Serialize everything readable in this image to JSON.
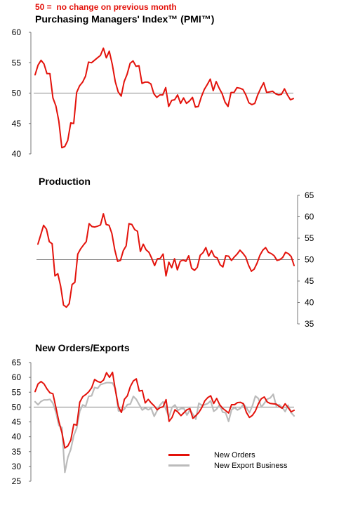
{
  "note": "50 =  no change on previous month",
  "colors": {
    "red": "#e3120b",
    "grey": "#bbbbbb",
    "axis": "#777777",
    "baseline": "#888888"
  },
  "chart_data": [
    {
      "type": "line",
      "title": "Purchasing Managers' Index™ (PMI™)",
      "ylim": [
        40,
        60
      ],
      "yticks": [
        40,
        45,
        50,
        55,
        60
      ],
      "y_axis_side": "left",
      "baseline": 50,
      "series": [
        {
          "color": "red",
          "values": [
            53.0,
            54.6,
            55.4,
            54.8,
            53.2,
            53.2,
            49.2,
            47.9,
            45.4,
            41.0,
            41.2,
            42.2,
            45.1,
            45.0,
            50.1,
            51.2,
            51.8,
            52.8,
            55.1,
            55.0,
            55.4,
            55.8,
            56.2,
            57.4,
            55.8,
            56.9,
            54.7,
            51.9,
            50.2,
            49.5,
            51.9,
            53.1,
            54.9,
            55.3,
            54.4,
            54.5,
            51.6,
            51.8,
            51.8,
            51.5,
            49.9,
            49.3,
            49.7,
            49.7,
            50.9,
            47.8,
            48.8,
            48.9,
            49.7,
            48.3,
            49.2,
            48.3,
            48.7,
            49.3,
            47.7,
            47.8,
            49.4,
            50.6,
            51.4,
            52.3,
            50.4,
            51.9,
            50.8,
            49.9,
            48.5,
            47.8,
            50.1,
            50.1,
            50.9,
            50.8,
            50.6,
            49.7,
            48.4,
            48.1,
            48.3,
            49.7,
            50.8,
            51.7,
            50.1,
            50.2,
            50.3,
            49.9,
            49.7,
            49.8,
            50.7,
            49.7,
            48.9,
            49.1
          ]
        }
      ]
    },
    {
      "type": "line",
      "title": "Production",
      "ylim": [
        35,
        65
      ],
      "yticks": [
        35,
        40,
        45,
        50,
        55,
        60,
        65
      ],
      "y_axis_side": "right",
      "baseline": 50,
      "series": [
        {
          "color": "red",
          "values": [
            53.6,
            55.8,
            58.0,
            57.1,
            54.2,
            53.7,
            46.2,
            46.7,
            43.8,
            39.4,
            38.9,
            39.7,
            44.2,
            44.7,
            51.3,
            52.5,
            53.4,
            54.2,
            58.4,
            57.7,
            57.6,
            57.8,
            58.1,
            60.7,
            58.2,
            58.0,
            56.1,
            52.3,
            49.6,
            49.8,
            52.1,
            53.2,
            58.4,
            58.2,
            57.0,
            56.6,
            51.9,
            53.6,
            52.3,
            51.7,
            50.3,
            48.6,
            50.2,
            50.3,
            51.3,
            46.2,
            49.4,
            48.1,
            50.2,
            47.6,
            49.6,
            49.9,
            49.6,
            50.9,
            48.0,
            47.5,
            48.2,
            51.0,
            51.6,
            52.8,
            50.8,
            52.1,
            50.7,
            50.4,
            48.8,
            48.3,
            50.9,
            50.8,
            49.8,
            50.6,
            51.3,
            52.2,
            51.5,
            50.6,
            48.7,
            47.3,
            47.8,
            49.2,
            51.0,
            52.2,
            52.8,
            51.7,
            51.4,
            50.9,
            49.8,
            50.0,
            50.5,
            51.7,
            51.4,
            50.7,
            48.6
          ]
        }
      ]
    },
    {
      "type": "line",
      "title": "New Orders/Exports",
      "ylim": [
        25,
        65
      ],
      "yticks": [
        25,
        30,
        35,
        40,
        45,
        50,
        55,
        60,
        65
      ],
      "y_axis_side": "left",
      "baseline": 50,
      "series": [
        {
          "name": "New Orders",
          "color": "red",
          "values": [
            55.2,
            57.8,
            58.6,
            57.8,
            56.1,
            54.8,
            54.5,
            49.8,
            45.1,
            41.4,
            36.2,
            36.9,
            38.9,
            44.2,
            43.9,
            51.6,
            53.5,
            54.2,
            55.1,
            56.5,
            59.3,
            58.6,
            58.3,
            59.1,
            61.6,
            60.0,
            61.7,
            55.5,
            50.1,
            48.2,
            52.6,
            53.8,
            56.9,
            58.8,
            59.5,
            55.4,
            55.6,
            51.4,
            52.6,
            51.4,
            50.4,
            49.1,
            49.8,
            50.1,
            52.5,
            45.2,
            46.5,
            49.1,
            48.3,
            47.1,
            48.1,
            49.1,
            49.5,
            46.2,
            47.1,
            48.2,
            49.8,
            52.1,
            53.2,
            53.8,
            51.2,
            52.9,
            50.8,
            49.6,
            48.8,
            48.0,
            50.8,
            50.8,
            51.5,
            51.6,
            51.1,
            48.2,
            46.5,
            47.2,
            48.7,
            51.1,
            52.8,
            53.4,
            51.7,
            51.2,
            51.1,
            51.0,
            50.2,
            49.6,
            51.1,
            49.8,
            48.4,
            48.9
          ]
        },
        {
          "name": "New Export Business",
          "color": "grey",
          "values": [
            51.8,
            50.8,
            51.9,
            52.4,
            52.4,
            52.6,
            51.3,
            48.2,
            43.8,
            43.1,
            28.0,
            33.1,
            35.8,
            40.4,
            43.0,
            48.6,
            50.7,
            50.3,
            53.6,
            53.8,
            56.6,
            56.3,
            57.6,
            57.9,
            58.2,
            58.2,
            58.1,
            56.2,
            48.7,
            48.7,
            49.3,
            50.8,
            51.0,
            53.6,
            52.6,
            50.8,
            49.0,
            49.7,
            49.1,
            49.6,
            46.9,
            48.8,
            50.7,
            51.8,
            49.1,
            46.7,
            49.9,
            50.7,
            48.9,
            49.5,
            49.5,
            47.3,
            49.0,
            47.6,
            45.9,
            51.3,
            50.6,
            50.8,
            51.2,
            52.1,
            48.6,
            49.3,
            50.8,
            48.3,
            48.1,
            45.2,
            49.1,
            49.8,
            49.0,
            49.6,
            51.0,
            49.8,
            48.1,
            50.4,
            53.7,
            52.9,
            50.0,
            51.3,
            52.7,
            53.1,
            54.3,
            50.4,
            50.8,
            49.9,
            48.5,
            50.6,
            48.1,
            47.0
          ]
        }
      ]
    }
  ]
}
